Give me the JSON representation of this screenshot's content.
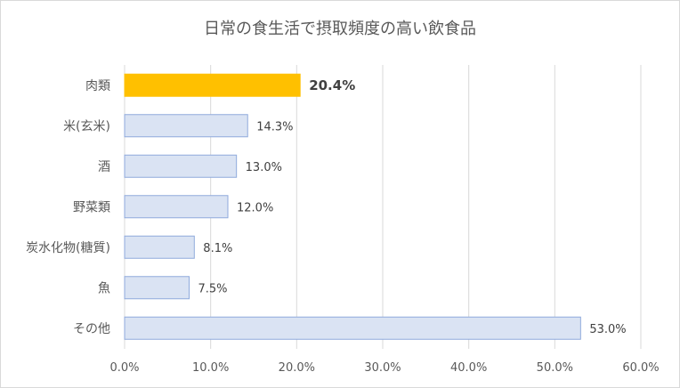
{
  "chart_data": {
    "type": "bar",
    "orientation": "horizontal",
    "title": "日常の食生活で摂取頻度の高い飲食品",
    "categories": [
      "肉類",
      "米(玄米)",
      "酒",
      "野菜類",
      "炭水化物(糖質)",
      "魚",
      "その他"
    ],
    "values": [
      20.4,
      14.3,
      13.0,
      12.0,
      8.1,
      7.5,
      53.0
    ],
    "value_labels": [
      "20.4%",
      "14.3%",
      "13.0%",
      "12.0%",
      "8.1%",
      "7.5%",
      "53.0%"
    ],
    "highlight_index": 0,
    "xlim": [
      0,
      60
    ],
    "x_ticks": [
      0,
      10,
      20,
      30,
      40,
      50,
      60
    ],
    "x_tick_labels": [
      "0.0%",
      "10.0%",
      "20.0%",
      "30.0%",
      "40.0%",
      "50.0%",
      "60.0%"
    ],
    "grid": true,
    "legend": "none",
    "colors": {
      "bar": "#dae3f3",
      "bar_border": "#8faadc",
      "highlight": "#ffc000",
      "grid": "#d9d9d9"
    }
  }
}
